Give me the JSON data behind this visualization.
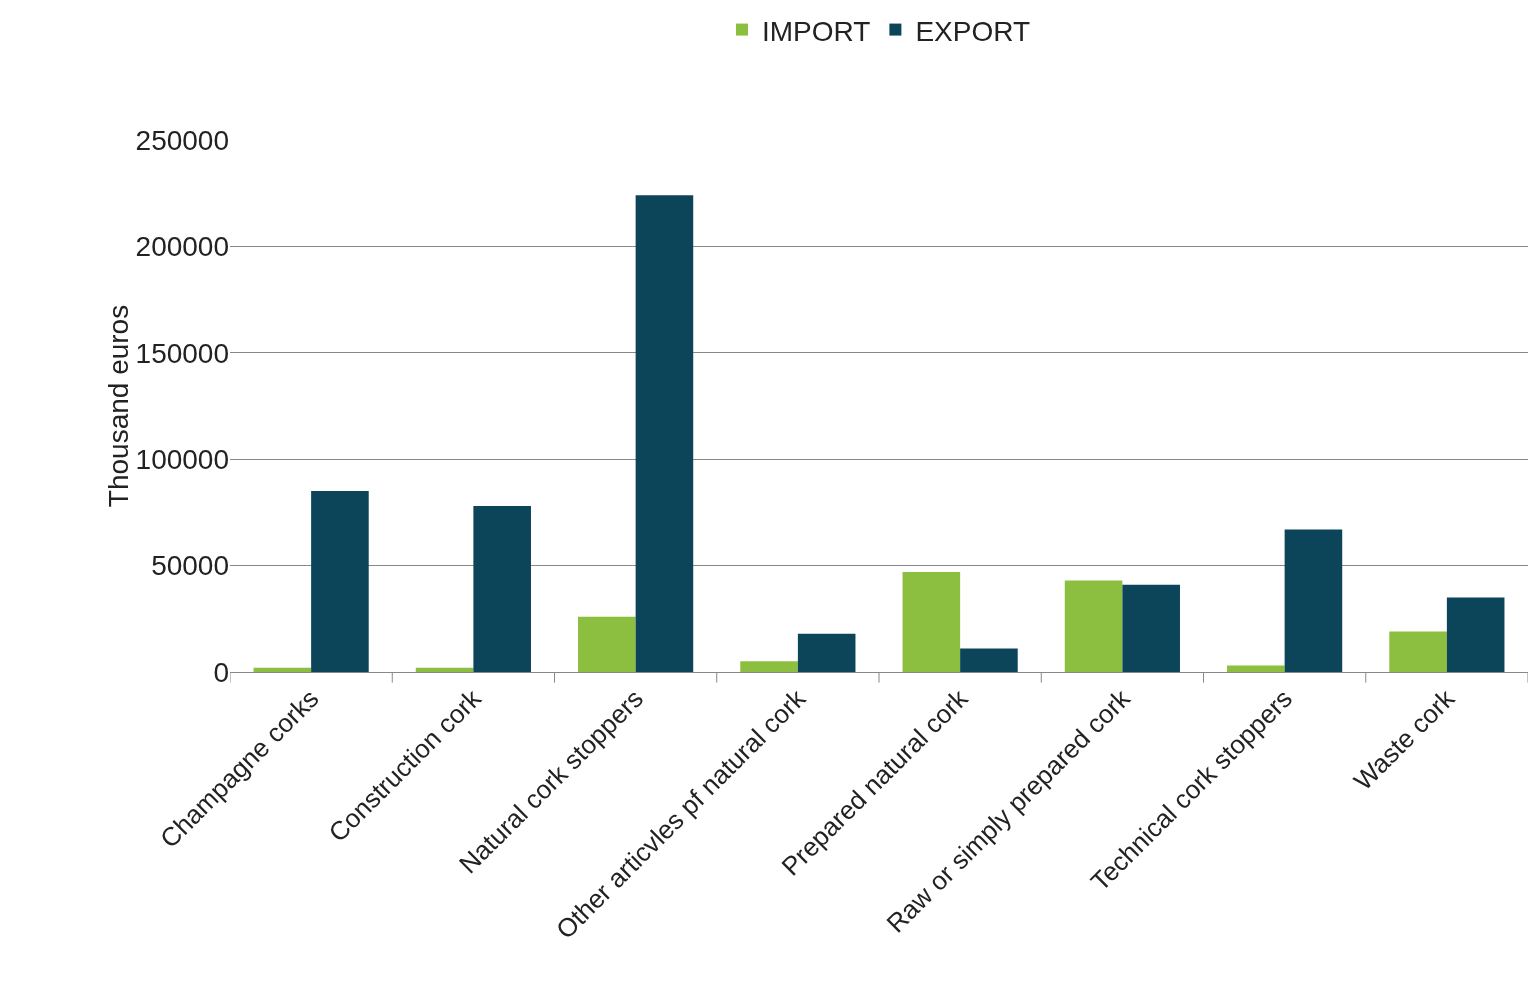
{
  "chart_data": {
    "type": "bar",
    "ylabel": "Thousand euros",
    "categories": [
      "Champagne corks",
      "Construction cork",
      "Natural cork stoppers",
      "Other articvles pf natural cork",
      "Prepared natural cork",
      "Raw or simply prepared cork",
      "Technical cork stoppers",
      "Waste cork"
    ],
    "series": [
      {
        "name": "IMPORT",
        "color": "#8cbf3f",
        "values": [
          2000,
          2000,
          26000,
          5000,
          47000,
          43000,
          3000,
          19000
        ]
      },
      {
        "name": "EXPORT",
        "color": "#0c4459",
        "values": [
          85000,
          78000,
          224000,
          18000,
          11000,
          41000,
          67000,
          35000
        ]
      }
    ],
    "ylim": [
      0,
      250000
    ],
    "yticks": [
      0,
      50000,
      100000,
      150000,
      200000,
      250000
    ],
    "grid": "y",
    "legend": "top"
  }
}
